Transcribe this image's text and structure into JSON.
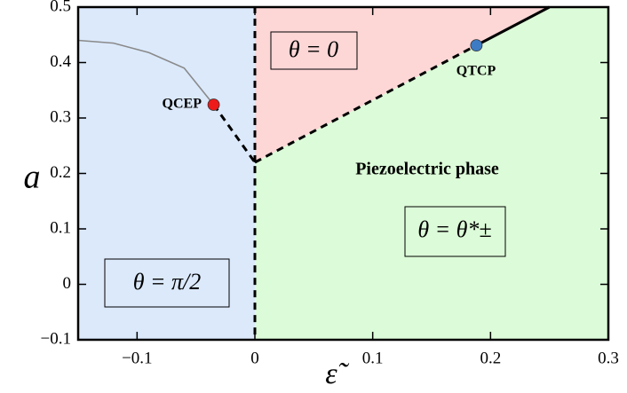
{
  "chart_data": {
    "type": "line",
    "xlabel": "ε̃",
    "ylabel": "a",
    "xlim": [
      -0.15,
      0.3
    ],
    "ylim": [
      -0.1,
      0.5
    ],
    "xticks": [
      {
        "value": -0.1,
        "label": "−0.1"
      },
      0,
      0.1,
      0.2,
      0.3
    ],
    "yticks": [
      {
        "value": -0.1,
        "label": "−0.1"
      },
      0,
      0.1,
      0.2,
      0.3,
      0.4,
      0.5
    ],
    "regions": [
      {
        "color": "#dbe9fb",
        "x": [
          -0.15,
          0,
          0,
          -0.15
        ],
        "y": [
          -0.1,
          -0.1,
          0.5,
          0.5
        ]
      },
      {
        "color": "#fdd6d6",
        "x": [
          0,
          0.25,
          0
        ],
        "y": [
          0.22,
          0.5,
          0.5
        ]
      },
      {
        "color": "#dcfbd8",
        "x": [
          0,
          0.3,
          0.3,
          0.25,
          0
        ],
        "y": [
          -0.1,
          -0.1,
          0.5,
          0.5,
          0.22
        ]
      }
    ],
    "series": [
      {
        "color": "#8a8a8a",
        "style": "solid",
        "x": [
          -0.15,
          -0.12,
          -0.09,
          -0.06,
          -0.035
        ],
        "y": [
          0.44,
          0.435,
          0.418,
          0.39,
          0.324
        ]
      },
      {
        "color": "#000000",
        "style": "dashed",
        "x": [
          -0.035,
          0,
          0
        ],
        "y": [
          0.324,
          0.22,
          -0.1
        ]
      },
      {
        "color": "#000000",
        "style": "dashed",
        "x": [
          0,
          0
        ],
        "y": [
          0.22,
          0.5
        ]
      },
      {
        "color": "#000000",
        "style": "dashed",
        "x": [
          0,
          0.188
        ],
        "y": [
          0.22,
          0.431
        ]
      },
      {
        "color": "#000000",
        "style": "solid",
        "x": [
          0.188,
          0.25
        ],
        "y": [
          0.431,
          0.5
        ]
      }
    ],
    "points": [
      {
        "label": "QCEP",
        "x": -0.035,
        "y": 0.324,
        "color": "#ee1b1b"
      },
      {
        "label": "QTCP",
        "x": 0.188,
        "y": 0.431,
        "color": "#3d7cc4"
      }
    ],
    "annotations": [
      "θ = 0",
      "Piezoelectric phase",
      "θ = θ*±",
      "θ = π/2"
    ]
  }
}
